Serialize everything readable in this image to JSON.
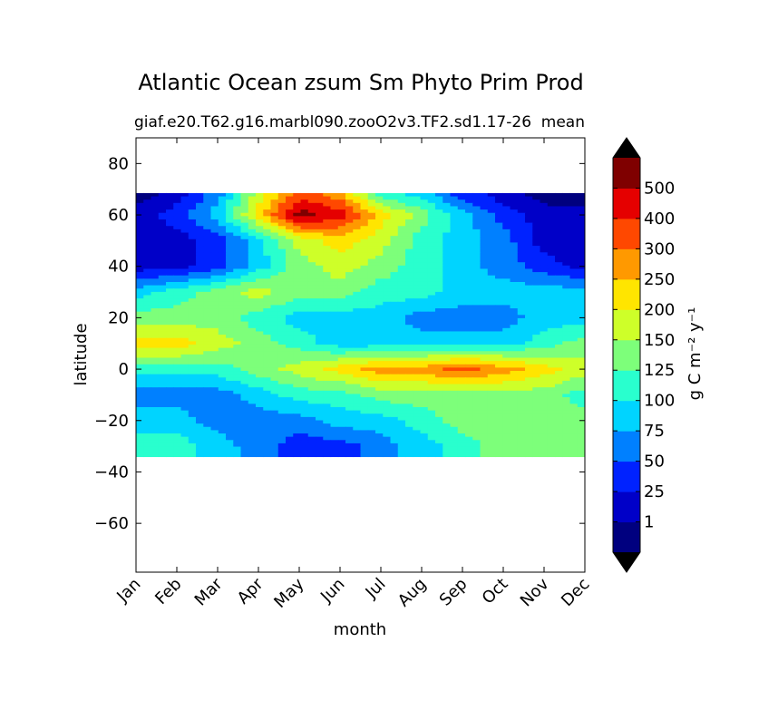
{
  "chart_data": {
    "type": "heatmap",
    "title": "Atlantic Ocean zsum Sm Phyto Prim Prod",
    "subtitle_left": "giaf.e20.T62.g16.marbl090.zooO2v3.TF2.sd1.17-26",
    "subtitle_right": "mean",
    "xlabel": "month",
    "ylabel": "latitude",
    "x_categories": [
      "Jan",
      "Feb",
      "Mar",
      "Apr",
      "May",
      "Jun",
      "Jul",
      "Aug",
      "Sep",
      "Oct",
      "Nov",
      "Dec"
    ],
    "y_ticks": [
      80,
      60,
      40,
      20,
      0,
      -20,
      -40,
      -60
    ],
    "y_tick_labels": [
      "80",
      "60",
      "40",
      "20",
      "0",
      "−20",
      "−40",
      "−60"
    ],
    "ylim": [
      -79,
      90
    ],
    "data_lat_range": [
      -34,
      68.5
    ],
    "colorbar": {
      "label": "g C m⁻² y⁻¹",
      "levels": [
        1,
        25,
        50,
        75,
        100,
        125,
        150,
        200,
        250,
        300,
        400,
        500
      ],
      "tick_labels": [
        "1",
        "25",
        "50",
        "75",
        "100",
        "125",
        "150",
        "200",
        "250",
        "300",
        "400",
        "500"
      ],
      "colors": [
        "#00007f",
        "#0000c8",
        "#0022ff",
        "#0080ff",
        "#00d4ff",
        "#29ffce",
        "#7dff7a",
        "#ceff29",
        "#ffe500",
        "#ff9900",
        "#ff4800",
        "#e50000",
        "#7f0000"
      ],
      "extend": "both"
    },
    "grid": false,
    "legend": "colorbar-right",
    "lat_rows": [
      68,
      60,
      50,
      40,
      30,
      20,
      10,
      0,
      -10,
      -20,
      -30
    ],
    "values": [
      [
        0,
        1,
        3,
        7,
        10,
        9,
        5,
        4,
        2,
        1,
        0,
        0
      ],
      [
        1,
        2,
        4,
        8,
        12,
        11,
        8,
        6,
        4,
        2,
        1,
        1
      ],
      [
        1,
        1,
        2,
        4,
        7,
        8,
        7,
        5,
        4,
        3,
        1,
        1
      ],
      [
        1,
        1,
        2,
        4,
        6,
        7,
        6,
        5,
        4,
        3,
        2,
        1
      ],
      [
        4,
        5,
        6,
        7,
        6,
        6,
        5,
        5,
        4,
        4,
        4,
        4
      ],
      [
        6,
        6,
        6,
        5,
        4,
        4,
        4,
        3,
        3,
        3,
        4,
        4
      ],
      [
        8,
        8,
        7,
        6,
        5,
        4,
        4,
        4,
        4,
        4,
        5,
        6
      ],
      [
        5,
        5,
        5,
        6,
        7,
        8,
        9,
        9,
        10,
        9,
        8,
        7
      ],
      [
        3,
        3,
        3,
        4,
        5,
        5,
        6,
        6,
        6,
        6,
        6,
        5
      ],
      [
        4,
        4,
        3,
        3,
        3,
        4,
        4,
        5,
        6,
        6,
        6,
        6
      ],
      [
        5,
        5,
        4,
        3,
        2,
        2,
        3,
        4,
        5,
        6,
        6,
        6
      ]
    ]
  }
}
